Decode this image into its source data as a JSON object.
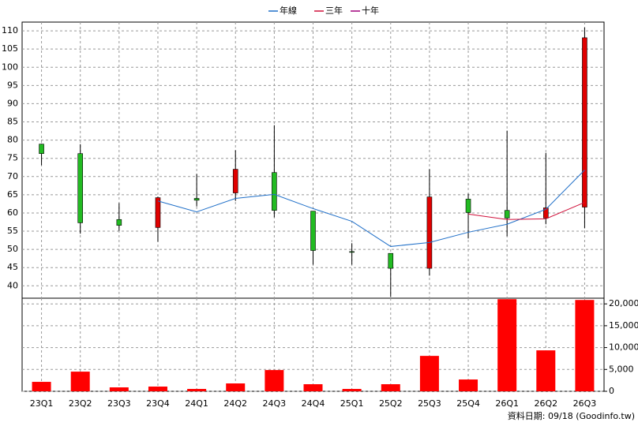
{
  "chart_data": [
    {
      "type": "candlestick",
      "open": [
        78.9,
        76.3,
        58.2,
        56.0,
        64.0,
        65.5,
        71.1,
        60.5,
        49.4,
        48.9,
        44.8,
        63.8,
        60.7,
        58.6,
        61.6
      ],
      "high": [
        79.0,
        78.9,
        62.7,
        64.5,
        70.7,
        77.2,
        84.1,
        60.5,
        51.7,
        48.9,
        72.0,
        65.3,
        82.6,
        76.5,
        110.9
      ],
      "low": [
        73.1,
        54.3,
        55.1,
        52.1,
        61.8,
        63.3,
        58.8,
        45.8,
        45.8,
        37.0,
        42.8,
        53.0,
        53.6,
        56.9,
        55.8
      ],
      "close": [
        76.3,
        57.3,
        56.6,
        64.2,
        63.5,
        72.0,
        60.7,
        49.7,
        49.2,
        44.8,
        64.4,
        60.1,
        58.6,
        61.4,
        108.1
      ],
      "up_color": "#e00000",
      "down_color": "#22bb22",
      "lines": [
        {
          "name": "年線",
          "color": "#1f6fc8",
          "values": [
            null,
            null,
            null,
            63.3,
            60.3,
            64.0,
            65.1,
            61.2,
            57.7,
            50.8,
            51.9,
            54.7,
            56.9,
            61.0,
            71.8
          ]
        },
        {
          "name": "三年",
          "color": "#d0103a",
          "values": [
            null,
            null,
            null,
            null,
            null,
            null,
            null,
            null,
            null,
            null,
            null,
            59.7,
            58.2,
            58.4,
            62.9
          ]
        },
        {
          "name": "十年",
          "color": "#a0007a",
          "values": [
            null,
            null,
            null,
            null,
            null,
            null,
            null,
            null,
            null,
            null,
            null,
            null,
            null,
            null,
            null
          ]
        }
      ],
      "ylim": [
        36.6,
        112.4
      ],
      "yticks": [
        40,
        45,
        50,
        55,
        60,
        65,
        70,
        75,
        80,
        85,
        90,
        95,
        100,
        105,
        110
      ],
      "grid": true,
      "legend": "top"
    },
    {
      "type": "bar",
      "categories": [
        "23Q1",
        "23Q2",
        "23Q3",
        "23Q4",
        "24Q1",
        "24Q2",
        "24Q3",
        "24Q4",
        "25Q1",
        "25Q2",
        "25Q3",
        "25Q4",
        "26Q1",
        "26Q2",
        "26Q3"
      ],
      "values": [
        2160,
        4500,
        900,
        1080,
        540,
        1800,
        4860,
        1620,
        540,
        1620,
        8100,
        2700,
        21080,
        9370,
        20900
      ],
      "color": "#ff0000",
      "ylim": [
        0,
        21300
      ],
      "yticks": [
        0,
        {
          "value": 5000,
          "label": "5,000"
        },
        {
          "value": 10000,
          "label": "10,000"
        },
        {
          "value": 15000,
          "label": "15,000"
        },
        {
          "value": 20000,
          "label": "20,000"
        }
      ],
      "grid": true,
      "source": "資料日期: 09/18 (Goodinfo.tw)"
    }
  ]
}
